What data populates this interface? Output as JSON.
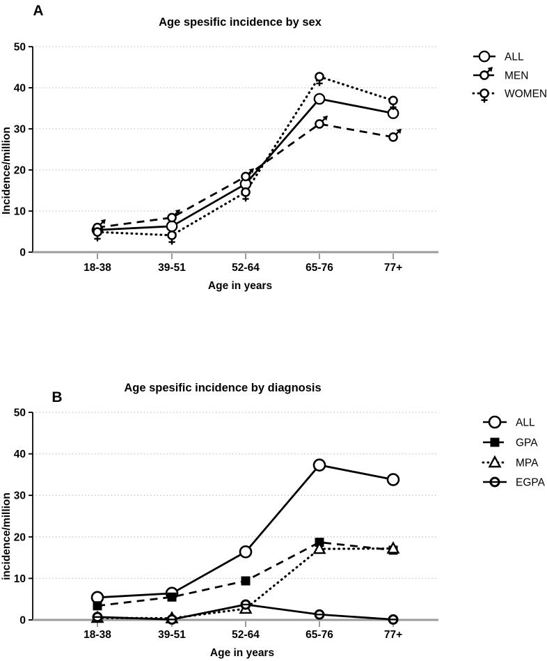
{
  "figure": {
    "background": "#ffffff",
    "text_color": "#000000",
    "grid_color": "#c4c4c4",
    "axis_baseline_color": "#9b9b9b",
    "y_axis_color": "#000000"
  },
  "chart_data": [
    {
      "type": "line",
      "panel_label": "A",
      "title": "Age spesific incidence by sex",
      "xlabel": "Age in years",
      "ylabel": "Incidence/million",
      "categories": [
        "18-38",
        "39-51",
        "52-64",
        "65-76",
        "77+"
      ],
      "ylim": [
        0,
        50
      ],
      "yticks": [
        0,
        10,
        20,
        30,
        40,
        50
      ],
      "grid": "horizontal-dotted",
      "legend_position": "right-top",
      "legend": [
        "ALL",
        "MEN",
        "WOMEN"
      ],
      "series": [
        {
          "name": "ALL",
          "values": [
            5.4,
            6.3,
            16.6,
            37.3,
            33.8
          ],
          "line": "solid",
          "marker": "circle-open"
        },
        {
          "name": "MEN",
          "values": [
            6.0,
            8.4,
            18.4,
            31.2,
            28.0
          ],
          "line": "dashed",
          "marker": "male"
        },
        {
          "name": "WOMEN",
          "values": [
            4.9,
            4.1,
            14.6,
            42.7,
            36.9
          ],
          "line": "dotted",
          "marker": "female"
        }
      ]
    },
    {
      "type": "line",
      "panel_label": "B",
      "title": "Age spesific incidence by diagnosis",
      "xlabel": "Age in years",
      "ylabel": "incidence/million",
      "categories": [
        "18-38",
        "39-51",
        "52-64",
        "65-76",
        "77+"
      ],
      "ylim": [
        0,
        50
      ],
      "yticks": [
        0,
        10,
        20,
        30,
        40,
        50
      ],
      "grid": "horizontal-dotted",
      "legend_position": "right-top",
      "legend": [
        "ALL",
        "GPA",
        "MPA",
        "EGPA"
      ],
      "series": [
        {
          "name": "ALL",
          "values": [
            5.4,
            6.4,
            16.4,
            37.3,
            33.8
          ],
          "line": "solid",
          "marker": "circle-open-large"
        },
        {
          "name": "GPA",
          "values": [
            3.4,
            5.5,
            9.4,
            18.7,
            16.8
          ],
          "line": "dashed",
          "marker": "square-filled"
        },
        {
          "name": "MPA",
          "values": [
            0.5,
            0.4,
            2.7,
            17.1,
            17.2
          ],
          "line": "dotted",
          "marker": "triangle-open"
        },
        {
          "name": "EGPA",
          "values": [
            0.7,
            0.1,
            3.7,
            1.3,
            0.1
          ],
          "line": "solid",
          "marker": "circle-line"
        }
      ]
    }
  ]
}
